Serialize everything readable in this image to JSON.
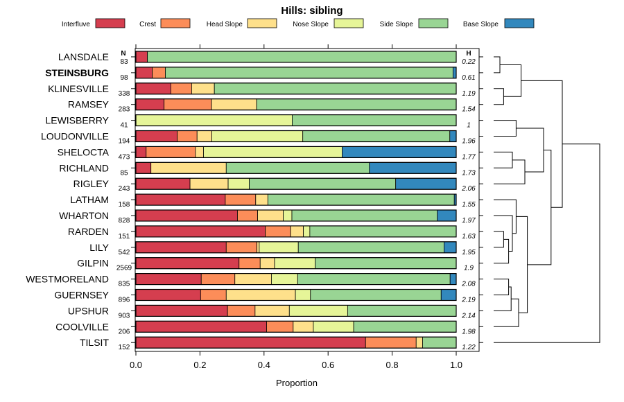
{
  "chart_data": {
    "type": "stacked-bar-horizontal",
    "title": "Hills: sibling",
    "xlabel": "Proportion",
    "xlim": [
      0,
      1
    ],
    "xticks": [
      "0.0",
      "0.2",
      "0.4",
      "0.6",
      "0.8",
      "1.0"
    ],
    "xtick_values": [
      0,
      0.2,
      0.4,
      0.6,
      0.8,
      1.0
    ],
    "n_header": "N",
    "h_header": "H",
    "legend": [
      {
        "name": "Interfluve",
        "color": "#d53e4f"
      },
      {
        "name": "Crest",
        "color": "#fc8d59"
      },
      {
        "name": "Head Slope",
        "color": "#fee08b"
      },
      {
        "name": "Nose Slope",
        "color": "#e6f598"
      },
      {
        "name": "Side Slope",
        "color": "#99d594"
      },
      {
        "name": "Base Slope",
        "color": "#3288bd"
      }
    ],
    "rows": [
      {
        "name": "LANSDALE",
        "n": "83",
        "h": "0.22",
        "bold": false,
        "values": [
          0.036,
          0,
          0,
          0,
          0.964,
          0
        ]
      },
      {
        "name": "STEINSBURG",
        "n": "98",
        "h": "0.61",
        "bold": true,
        "values": [
          0.051,
          0.041,
          0,
          0,
          0.898,
          0.01
        ]
      },
      {
        "name": "KLINESVILLE",
        "n": "338",
        "h": "1.19",
        "bold": false,
        "values": [
          0.109,
          0.065,
          0.071,
          0,
          0.755,
          0
        ]
      },
      {
        "name": "RAMSEY",
        "n": "283",
        "h": "1.54",
        "bold": false,
        "values": [
          0.088,
          0.148,
          0.141,
          0,
          0.623,
          0
        ]
      },
      {
        "name": "LEWISBERRY",
        "n": "41",
        "h": "1",
        "bold": false,
        "values": [
          0,
          0,
          0,
          0.488,
          0.512,
          0
        ]
      },
      {
        "name": "LOUDONVILLE",
        "n": "194",
        "h": "1.96",
        "bold": false,
        "values": [
          0.129,
          0.062,
          0.046,
          0.284,
          0.459,
          0.02
        ]
      },
      {
        "name": "SHELOCTA",
        "n": "473",
        "h": "1.77",
        "bold": false,
        "values": [
          0.032,
          0.154,
          0.025,
          0.433,
          0,
          0.356
        ]
      },
      {
        "name": "RICHLAND",
        "n": "85",
        "h": "1.73",
        "bold": false,
        "values": [
          0.047,
          0,
          0.235,
          0,
          0.447,
          0.271
        ]
      },
      {
        "name": "RIGLEY",
        "n": "243",
        "h": "2.06",
        "bold": false,
        "values": [
          0.169,
          0,
          0.119,
          0.066,
          0.457,
          0.189
        ]
      },
      {
        "name": "LATHAM",
        "n": "158",
        "h": "1.55",
        "bold": false,
        "values": [
          0.279,
          0.095,
          0.038,
          0,
          0.582,
          0.006
        ]
      },
      {
        "name": "WHARTON",
        "n": "828",
        "h": "1.97",
        "bold": false,
        "values": [
          0.317,
          0.063,
          0.08,
          0.027,
          0.454,
          0.059
        ]
      },
      {
        "name": "RARDEN",
        "n": "151",
        "h": "1.63",
        "bold": false,
        "values": [
          0.404,
          0.079,
          0.04,
          0.02,
          0.457,
          0
        ]
      },
      {
        "name": "LILY",
        "n": "542",
        "h": "1.95",
        "bold": false,
        "values": [
          0.282,
          0.096,
          0.007,
          0.122,
          0.455,
          0.038
        ]
      },
      {
        "name": "GILPIN",
        "n": "2569",
        "h": "1.9",
        "bold": false,
        "values": [
          0.322,
          0.066,
          0.045,
          0.127,
          0.44,
          0
        ]
      },
      {
        "name": "WESTMORELAND",
        "n": "835",
        "h": "2.08",
        "bold": false,
        "values": [
          0.204,
          0.105,
          0.114,
          0.082,
          0.476,
          0.019
        ]
      },
      {
        "name": "GUERNSEY",
        "n": "896",
        "h": "2.19",
        "bold": false,
        "values": [
          0.202,
          0.08,
          0.216,
          0.047,
          0.408,
          0.047
        ]
      },
      {
        "name": "UPSHUR",
        "n": "903",
        "h": "2.14",
        "bold": false,
        "values": [
          0.286,
          0.086,
          0.107,
          0.182,
          0.339,
          0
        ]
      },
      {
        "name": "COOLVILLE",
        "n": "206",
        "h": "1.98",
        "bold": false,
        "values": [
          0.408,
          0.083,
          0.063,
          0.126,
          0.32,
          0
        ]
      },
      {
        "name": "TILSIT",
        "n": "152",
        "h": "1.22",
        "bold": false,
        "values": [
          0.717,
          0.158,
          0.02,
          0,
          0.105,
          0
        ]
      }
    ],
    "dendrogram": {
      "merges": [
        {
          "a": "L0",
          "b": "L1",
          "height": 0.05
        },
        {
          "a": "L2",
          "b": "L3",
          "height": 0.08
        },
        {
          "a": "N0",
          "b": "N1",
          "height": 0.22
        },
        {
          "a": "L4",
          "b": "L5",
          "height": 0.18
        },
        {
          "a": "L6",
          "b": "L7",
          "height": 0.15
        },
        {
          "a": "N4",
          "b": "L8",
          "height": 0.25
        },
        {
          "a": "N3",
          "b": "N5",
          "height": 0.4
        },
        {
          "a": "L11",
          "b": "L12",
          "height": 0.08
        },
        {
          "a": "N7",
          "b": "L13",
          "height": 0.12
        },
        {
          "a": "L10",
          "b": "N8",
          "height": 0.15
        },
        {
          "a": "L9",
          "b": "N9",
          "height": 0.18
        },
        {
          "a": "L14",
          "b": "L15",
          "height": 0.12
        },
        {
          "a": "N11",
          "b": "L16",
          "height": 0.14
        },
        {
          "a": "N12",
          "b": "L17",
          "height": 0.2
        },
        {
          "a": "N10",
          "b": "N13",
          "height": 0.27
        },
        {
          "a": "N6",
          "b": "N14",
          "height": 0.46
        },
        {
          "a": "N2",
          "b": "N15",
          "height": 0.55
        },
        {
          "a": "N16",
          "b": "L18",
          "height": 0.85
        }
      ]
    }
  }
}
